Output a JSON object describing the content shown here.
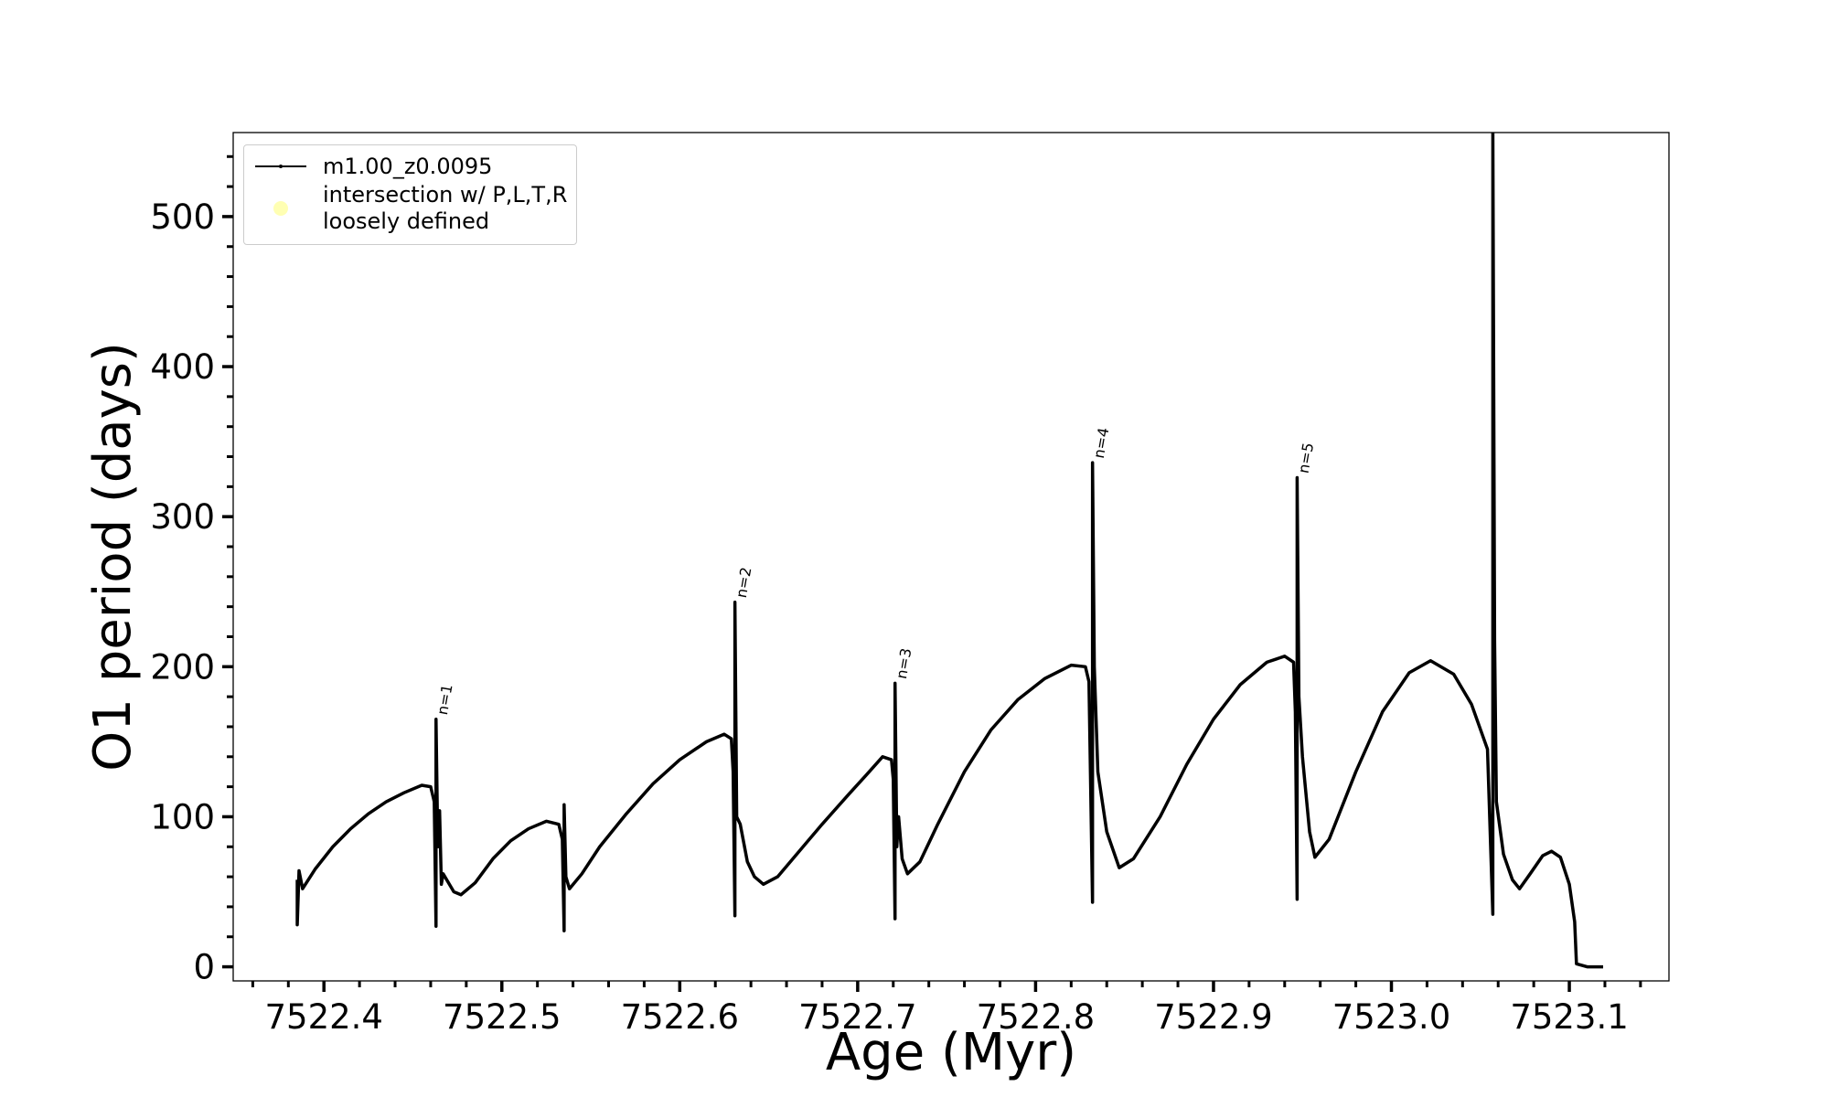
{
  "chart_data": {
    "type": "line",
    "xlabel": "Age (Myr)",
    "ylabel": "O1 period (days)",
    "xlim": [
      7522.349,
      7523.156
    ],
    "ylim": [
      -9.4,
      556
    ],
    "xticks": [
      {
        "value": 7522.4,
        "label": "7522.4"
      },
      {
        "value": 7522.5,
        "label": "7522.5"
      },
      {
        "value": 7522.6,
        "label": "7522.6"
      },
      {
        "value": 7522.7,
        "label": "7522.7"
      },
      {
        "value": 7522.8,
        "label": "7522.8"
      },
      {
        "value": 7522.9,
        "label": "7522.9"
      },
      {
        "value": 7523.0,
        "label": "7523.0"
      },
      {
        "value": 7523.1,
        "label": "7523.1"
      }
    ],
    "xminorticks": [
      7522.36,
      7522.38,
      7522.42,
      7522.44,
      7522.46,
      7522.48,
      7522.52,
      7522.54,
      7522.56,
      7522.58,
      7522.62,
      7522.64,
      7522.66,
      7522.68,
      7522.72,
      7522.74,
      7522.76,
      7522.78,
      7522.82,
      7522.84,
      7522.86,
      7522.88,
      7522.92,
      7522.94,
      7522.96,
      7522.98,
      7523.02,
      7523.04,
      7523.06,
      7523.08,
      7523.12,
      7523.14
    ],
    "yticks": [
      0,
      100,
      200,
      300,
      400,
      500
    ],
    "yminorticks": [
      20,
      40,
      60,
      80,
      120,
      140,
      160,
      180,
      220,
      240,
      260,
      280,
      320,
      340,
      360,
      380,
      420,
      440,
      460,
      480,
      520,
      540
    ],
    "legend": "upper left",
    "series": [
      {
        "name": "m1.00_z0.0095",
        "color": "#000000",
        "x": [
          7522.385,
          7522.385,
          7522.386,
          7522.388,
          7522.395,
          7522.405,
          7522.415,
          7522.425,
          7522.435,
          7522.445,
          7522.455,
          7522.46,
          7522.462,
          7522.463,
          7522.463,
          7522.464,
          7522.465,
          7522.466,
          7522.467,
          7522.469,
          7522.473,
          7522.477,
          7522.485,
          7522.495,
          7522.505,
          7522.515,
          7522.525,
          7522.532,
          7522.534,
          7522.535,
          7522.535,
          7522.536,
          7522.538,
          7522.545,
          7522.555,
          7522.57,
          7522.585,
          7522.6,
          7522.615,
          7522.625,
          7522.629,
          7522.63,
          7522.631,
          7522.631,
          7522.632,
          7522.634,
          7522.638,
          7522.642,
          7522.647,
          7522.655,
          7522.665,
          7522.68,
          7522.695,
          7522.705,
          7522.714,
          7522.719,
          7522.72,
          7522.721,
          7522.721,
          7522.722,
          7522.723,
          7522.725,
          7522.728,
          7522.735,
          7522.745,
          7522.76,
          7522.775,
          7522.79,
          7522.805,
          7522.82,
          7522.828,
          7522.83,
          7522.832,
          7522.832,
          7522.833,
          7522.835,
          7522.84,
          7522.847,
          7522.855,
          7522.87,
          7522.885,
          7522.9,
          7522.915,
          7522.93,
          7522.94,
          7522.945,
          7522.946,
          7522.947,
          7522.947,
          7522.948,
          7522.95,
          7522.954,
          7522.957,
          7522.965,
          7522.98,
          7522.995,
          7523.01,
          7523.022,
          7523.035,
          7523.045,
          7523.054,
          7523.057,
          7523.057,
          7523.058,
          7523.059,
          7523.063,
          7523.068,
          7523.072,
          7523.078,
          7523.085,
          7523.09,
          7523.095,
          7523.1,
          7523.103,
          7523.104,
          7523.11,
          7523.119
        ],
        "values": [
          58,
          28,
          64,
          52,
          65,
          80,
          92,
          102,
          110,
          116,
          121,
          120,
          110,
          27,
          165,
          80,
          104,
          55,
          62,
          58,
          50,
          48,
          56,
          72,
          84,
          92,
          97,
          95,
          85,
          24,
          108,
          60,
          52,
          62,
          80,
          102,
          122,
          138,
          150,
          155,
          152,
          130,
          34,
          243,
          100,
          95,
          70,
          60,
          55,
          60,
          74,
          95,
          115,
          128,
          140,
          138,
          125,
          32,
          189,
          80,
          100,
          72,
          62,
          70,
          95,
          130,
          158,
          178,
          192,
          201,
          200,
          190,
          43,
          336,
          200,
          130,
          90,
          66,
          72,
          100,
          135,
          165,
          188,
          203,
          207,
          203,
          170,
          45,
          326,
          180,
          140,
          90,
          73,
          85,
          130,
          170,
          196,
          204,
          195,
          175,
          145,
          35,
          560,
          217,
          110,
          75,
          58,
          52,
          62,
          74,
          77,
          73,
          55,
          30,
          2,
          0,
          0
        ]
      },
      {
        "name": "intersection w/ P,L,T,R\nloosely defined",
        "color": "#ffffb3",
        "x": [],
        "values": []
      }
    ],
    "annotations": [
      {
        "text": "n=1",
        "x": 7522.463,
        "y": 165
      },
      {
        "text": "n=2",
        "x": 7522.631,
        "y": 243
      },
      {
        "text": "n=3",
        "x": 7522.721,
        "y": 189
      },
      {
        "text": "n=4",
        "x": 7522.832,
        "y": 336
      },
      {
        "text": "n=5",
        "x": 7522.947,
        "y": 326
      }
    ]
  }
}
